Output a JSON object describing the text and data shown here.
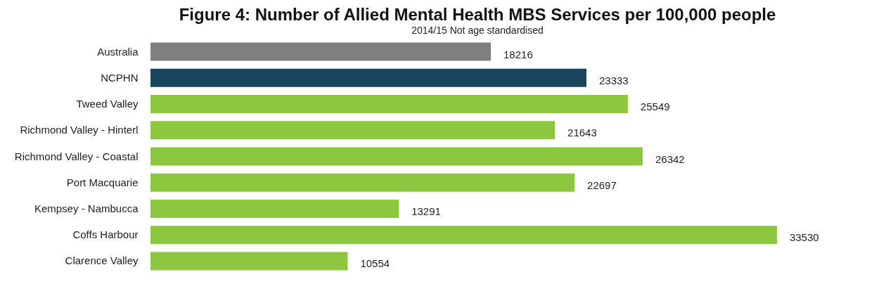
{
  "chart_data": {
    "type": "bar",
    "orientation": "horizontal",
    "title": "Figure 4: Number of Allied Mental Health MBS Services per 100,000 people",
    "subtitle": "2014/15 Not age standardised",
    "categories": [
      "Australia",
      "NCPHN",
      "Tweed Valley",
      "Richmond Valley - Hinterl",
      "Richmond Valley - Coastal",
      "Port Macquarie",
      "Kempsey - Nambucca",
      "Coffs Harbour",
      "Clarence Valley"
    ],
    "values": [
      18216,
      23333,
      25549,
      21643,
      26342,
      22697,
      13291,
      33530,
      10554
    ],
    "colors": [
      "#7f7f7f",
      "#17465e",
      "#8dc63f",
      "#8dc63f",
      "#8dc63f",
      "#8dc63f",
      "#8dc63f",
      "#8dc63f",
      "#8dc63f"
    ],
    "data_labels": true
  }
}
